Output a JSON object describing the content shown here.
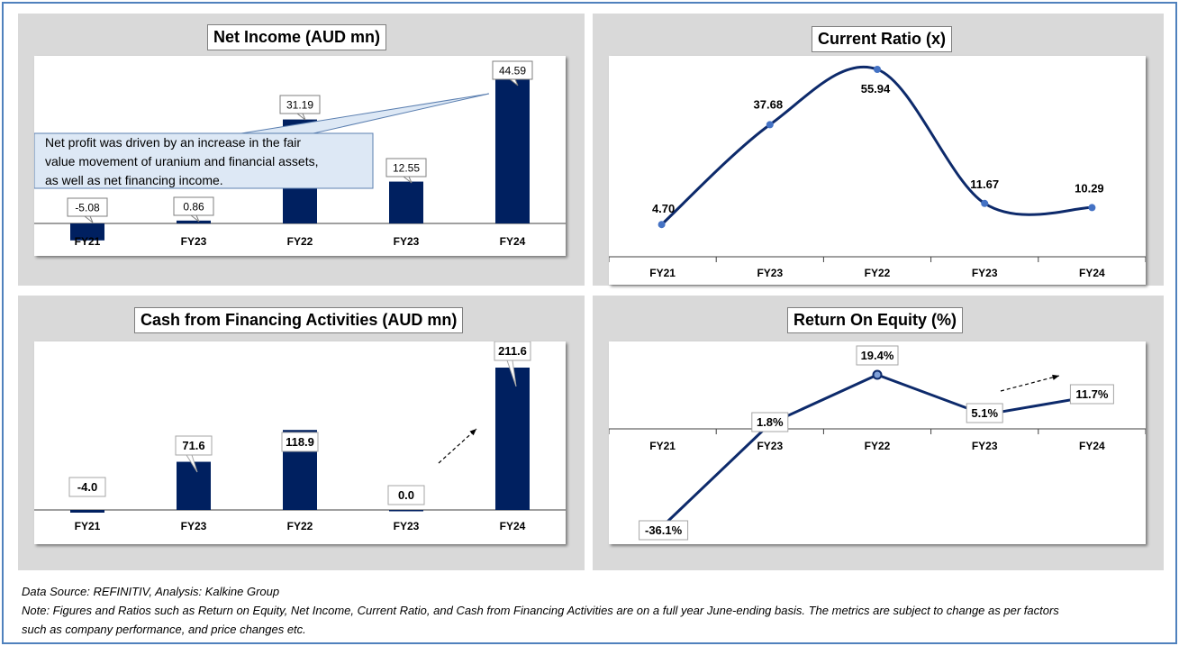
{
  "footer": {
    "source": "Data Source: REFINITIV, Analysis: Kalkine Group",
    "note_line1": "Note: Figures and Ratios such as  Return on Equity, Net Income, Current Ratio, and Cash from Financing Activities are on a full year June-ending basis. The metrics are subject to change as per factors",
    "note_line2": "such as company performance, and price changes etc."
  },
  "colors": {
    "bar": "#002060",
    "line": "#0d2a6b",
    "marker": "#4472c4",
    "panel": "#d9d9d9",
    "frame": "#4f81bd",
    "callout_fill": "#dde8f5",
    "callout_border": "#5b7fb0"
  },
  "chart_data": [
    {
      "id": "net_income",
      "type": "bar",
      "title": "Net Income (AUD mn)",
      "categories": [
        "FY21",
        "FY23",
        "FY22",
        "FY23",
        "FY24"
      ],
      "values": [
        -5.08,
        0.86,
        31.19,
        12.55,
        44.59
      ],
      "labels": [
        "-5.08",
        "0.86",
        "31.19",
        "12.55",
        "44.59"
      ],
      "annotation": {
        "line1": "Net profit was driven by an increase in the fair",
        "line2": "value movement of uranium and financial assets,",
        "line3": "as well as net financing income."
      }
    },
    {
      "id": "current_ratio",
      "type": "line",
      "title": "Current Ratio (x)",
      "categories": [
        "FY21",
        "FY23",
        "FY22",
        "FY23",
        "FY24"
      ],
      "values": [
        4.7,
        37.68,
        55.94,
        11.67,
        10.29
      ],
      "labels": [
        "4.70",
        "37.68",
        "55.94",
        "11.67",
        "10.29"
      ]
    },
    {
      "id": "cash_financing",
      "type": "bar",
      "title": "Cash from Financing Activities (AUD mn)",
      "categories": [
        "FY21",
        "FY23",
        "FY22",
        "FY23",
        "FY24"
      ],
      "values": [
        -4.0,
        71.6,
        118.9,
        0.0,
        211.6
      ],
      "labels": [
        "-4.0",
        "71.6",
        "118.9",
        "0.0",
        "211.6"
      ]
    },
    {
      "id": "roe",
      "type": "line",
      "title": "Return On Equity (%)",
      "categories": [
        "FY21",
        "FY23",
        "FY22",
        "FY23",
        "FY24"
      ],
      "values": [
        -36.1,
        1.8,
        19.4,
        5.1,
        11.7
      ],
      "labels": [
        "-36.1%",
        "1.8%",
        "19.4%",
        "5.1%",
        "11.7%"
      ]
    }
  ]
}
